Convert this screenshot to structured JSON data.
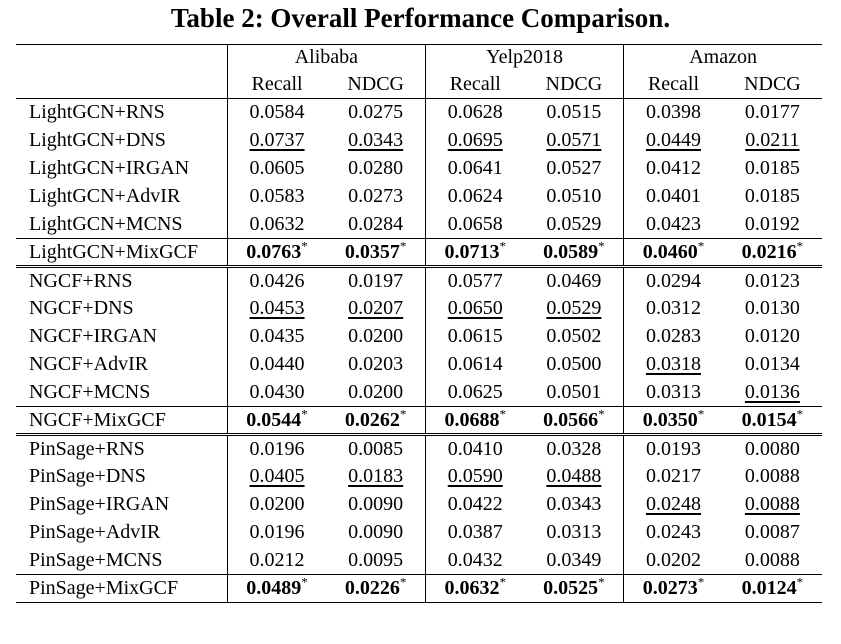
{
  "title": "Table 2: Overall Performance Comparison.",
  "datasets": [
    "Alibaba",
    "Yelp2018",
    "Amazon"
  ],
  "metrics": [
    "Recall",
    "NDCG"
  ],
  "groups": [
    {
      "rows": [
        {
          "model": "LightGCN+RNS",
          "values": [
            "0.0584",
            "0.0275",
            "0.0628",
            "0.0515",
            "0.0398",
            "0.0177"
          ],
          "underline": [
            false,
            false,
            false,
            false,
            false,
            false
          ],
          "bold": false
        },
        {
          "model": "LightGCN+DNS",
          "values": [
            "0.0737",
            "0.0343",
            "0.0695",
            "0.0571",
            "0.0449",
            "0.0211"
          ],
          "underline": [
            true,
            true,
            true,
            true,
            true,
            true
          ],
          "bold": false
        },
        {
          "model": "LightGCN+IRGAN",
          "values": [
            "0.0605",
            "0.0280",
            "0.0641",
            "0.0527",
            "0.0412",
            "0.0185"
          ],
          "underline": [
            false,
            false,
            false,
            false,
            false,
            false
          ],
          "bold": false
        },
        {
          "model": "LightGCN+AdvIR",
          "values": [
            "0.0583",
            "0.0273",
            "0.0624",
            "0.0510",
            "0.0401",
            "0.0185"
          ],
          "underline": [
            false,
            false,
            false,
            false,
            false,
            false
          ],
          "bold": false
        },
        {
          "model": "LightGCN+MCNS",
          "values": [
            "0.0632",
            "0.0284",
            "0.0658",
            "0.0529",
            "0.0423",
            "0.0192"
          ],
          "underline": [
            false,
            false,
            false,
            false,
            false,
            false
          ],
          "bold": false
        },
        {
          "model": "LightGCN+MixGCF",
          "values": [
            "0.0763",
            "0.0357",
            "0.0713",
            "0.0589",
            "0.0460",
            "0.0216"
          ],
          "underline": [
            false,
            false,
            false,
            false,
            false,
            false
          ],
          "bold": true
        }
      ]
    },
    {
      "rows": [
        {
          "model": "NGCF+RNS",
          "values": [
            "0.0426",
            "0.0197",
            "0.0577",
            "0.0469",
            "0.0294",
            "0.0123"
          ],
          "underline": [
            false,
            false,
            false,
            false,
            false,
            false
          ],
          "bold": false
        },
        {
          "model": "NGCF+DNS",
          "values": [
            "0.0453",
            "0.0207",
            "0.0650",
            "0.0529",
            "0.0312",
            "0.0130"
          ],
          "underline": [
            true,
            true,
            true,
            true,
            false,
            false
          ],
          "bold": false
        },
        {
          "model": "NGCF+IRGAN",
          "values": [
            "0.0435",
            "0.0200",
            "0.0615",
            "0.0502",
            "0.0283",
            "0.0120"
          ],
          "underline": [
            false,
            false,
            false,
            false,
            false,
            false
          ],
          "bold": false
        },
        {
          "model": "NGCF+AdvIR",
          "values": [
            "0.0440",
            "0.0203",
            "0.0614",
            "0.0500",
            "0.0318",
            "0.0134"
          ],
          "underline": [
            false,
            false,
            false,
            false,
            true,
            false
          ],
          "bold": false
        },
        {
          "model": "NGCF+MCNS",
          "values": [
            "0.0430",
            "0.0200",
            "0.0625",
            "0.0501",
            "0.0313",
            "0.0136"
          ],
          "underline": [
            false,
            false,
            false,
            false,
            false,
            true
          ],
          "bold": false
        },
        {
          "model": "NGCF+MixGCF",
          "values": [
            "0.0544",
            "0.0262",
            "0.0688",
            "0.0566",
            "0.0350",
            "0.0154"
          ],
          "underline": [
            false,
            false,
            false,
            false,
            false,
            false
          ],
          "bold": true
        }
      ]
    },
    {
      "rows": [
        {
          "model": "PinSage+RNS",
          "values": [
            "0.0196",
            "0.0085",
            "0.0410",
            "0.0328",
            "0.0193",
            "0.0080"
          ],
          "underline": [
            false,
            false,
            false,
            false,
            false,
            false
          ],
          "bold": false
        },
        {
          "model": "PinSage+DNS",
          "values": [
            "0.0405",
            "0.0183",
            "0.0590",
            "0.0488",
            "0.0217",
            "0.0088"
          ],
          "underline": [
            true,
            true,
            true,
            true,
            false,
            false
          ],
          "bold": false
        },
        {
          "model": "PinSage+IRGAN",
          "values": [
            "0.0200",
            "0.0090",
            "0.0422",
            "0.0343",
            "0.0248",
            "0.0088"
          ],
          "underline": [
            false,
            false,
            false,
            false,
            true,
            true
          ],
          "bold": false
        },
        {
          "model": "PinSage+AdvIR",
          "values": [
            "0.0196",
            "0.0090",
            "0.0387",
            "0.0313",
            "0.0243",
            "0.0087"
          ],
          "underline": [
            false,
            false,
            false,
            false,
            false,
            false
          ],
          "bold": false
        },
        {
          "model": "PinSage+MCNS",
          "values": [
            "0.0212",
            "0.0095",
            "0.0432",
            "0.0349",
            "0.0202",
            "0.0088"
          ],
          "underline": [
            false,
            false,
            false,
            false,
            false,
            false
          ],
          "bold": false
        },
        {
          "model": "PinSage+MixGCF",
          "values": [
            "0.0489",
            "0.0226",
            "0.0632",
            "0.0525",
            "0.0273",
            "0.0124"
          ],
          "underline": [
            false,
            false,
            false,
            false,
            false,
            false
          ],
          "bold": true
        }
      ]
    }
  ],
  "significance_mark": "*"
}
